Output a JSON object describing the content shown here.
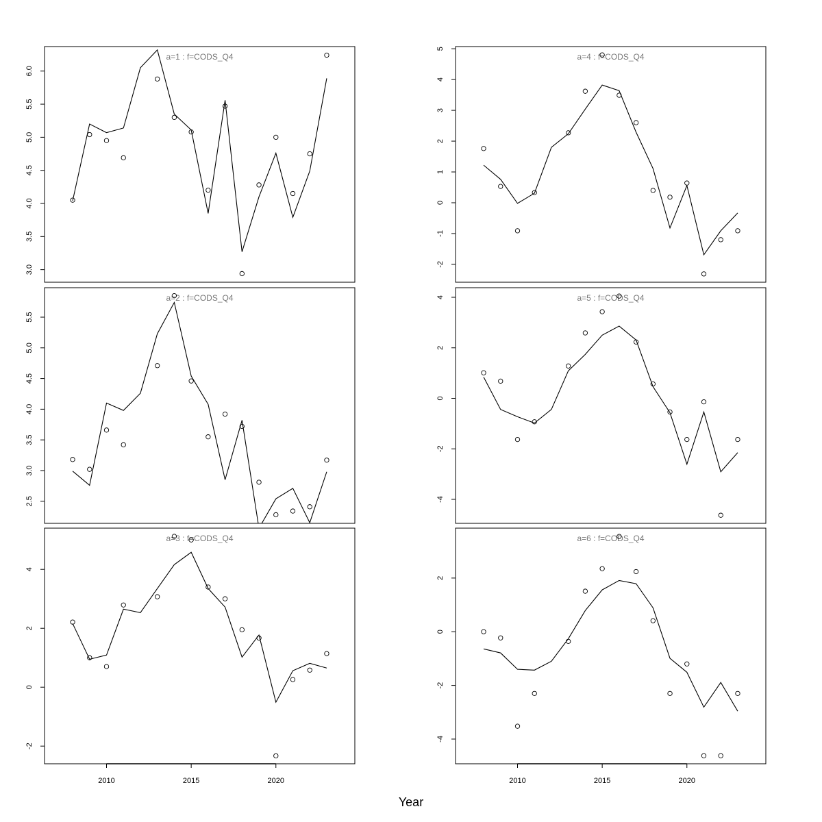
{
  "xlabel": "Year",
  "chart_data": [
    {
      "type": "line",
      "title": "a=1  :  f=CODS_Q4",
      "x": [
        2008,
        2009,
        2010,
        2011,
        2012,
        2013,
        2014,
        2015,
        2016,
        2017,
        2018,
        2019,
        2020,
        2021,
        2022,
        2023
      ],
      "points": [
        4.05,
        5.04,
        4.95,
        4.69,
        null,
        5.88,
        5.3,
        5.08,
        4.2,
        5.47,
        2.94,
        4.28,
        5.0,
        4.15,
        4.75,
        6.24
      ],
      "line": [
        4.04,
        5.2,
        5.07,
        5.14,
        6.05,
        6.32,
        5.35,
        5.11,
        3.85,
        5.56,
        3.27,
        4.1,
        4.76,
        3.79,
        4.49,
        5.89
      ],
      "xlim": [
        2006.34,
        2024.66
      ],
      "ylim": [
        2.81,
        6.37
      ],
      "yticks": [
        {
          "value": 3,
          "label": "3.0"
        },
        3.5,
        {
          "value": 4,
          "label": "4.0"
        },
        4.5,
        {
          "value": 5,
          "label": "5.0"
        },
        5.5,
        {
          "value": 6,
          "label": "6.0"
        }
      ],
      "color": "#000000",
      "title_color": "#777777"
    },
    {
      "type": "line",
      "title": "a=2  :  f=CODS_Q4",
      "x": [
        2008,
        2009,
        2010,
        2011,
        2012,
        2013,
        2014,
        2015,
        2016,
        2017,
        2018,
        2019,
        2020,
        2021,
        2022,
        2023
      ],
      "points": [
        3.18,
        3.02,
        3.66,
        3.42,
        null,
        4.71,
        5.85,
        4.46,
        3.55,
        3.92,
        3.72,
        2.81,
        2.28,
        2.34,
        2.41,
        3.17
      ],
      "line": [
        2.99,
        2.76,
        4.1,
        3.98,
        4.26,
        5.23,
        5.74,
        4.54,
        4.08,
        2.85,
        3.82,
        2.06,
        2.54,
        2.71,
        2.15,
        2.98
      ],
      "xlim": [
        2006.34,
        2024.66
      ],
      "ylim": [
        2.14,
        5.98
      ],
      "yticks": [
        2.5,
        {
          "value": 3,
          "label": "3.0"
        },
        3.5,
        {
          "value": 4,
          "label": "4.0"
        },
        4.5,
        {
          "value": 5,
          "label": "5.0"
        },
        5.5
      ],
      "color": "#000000",
      "title_color": "#777777"
    },
    {
      "type": "line",
      "title": "a=3  :  f=CODS_Q4",
      "x": [
        2008,
        2009,
        2010,
        2011,
        2012,
        2013,
        2014,
        2015,
        2016,
        2017,
        2018,
        2019,
        2020,
        2021,
        2022,
        2023
      ],
      "points": [
        2.21,
        1.0,
        0.7,
        2.79,
        null,
        3.07,
        5.12,
        5.0,
        3.4,
        3.0,
        1.95,
        1.67,
        -2.33,
        0.26,
        0.58,
        1.14
      ],
      "line": [
        2.16,
        0.95,
        1.09,
        2.65,
        2.53,
        3.35,
        4.16,
        4.58,
        3.35,
        2.72,
        1.02,
        1.77,
        -0.51,
        0.56,
        0.81,
        0.65
      ],
      "xlim": [
        2006.34,
        2024.66
      ],
      "ylim": [
        -2.6,
        5.4
      ],
      "xticks": [
        2010,
        2015,
        2020
      ],
      "yticks": [
        -2,
        0,
        2,
        4
      ],
      "color": "#000000",
      "title_color": "#777777"
    },
    {
      "type": "line",
      "title": "a=4  :  f=CODS_Q4",
      "x": [
        2008,
        2009,
        2010,
        2011,
        2012,
        2013,
        2014,
        2015,
        2016,
        2017,
        2018,
        2019,
        2020,
        2021,
        2022,
        2023
      ],
      "points": [
        1.76,
        0.53,
        -0.91,
        0.33,
        null,
        2.27,
        3.62,
        4.8,
        3.49,
        2.6,
        0.4,
        0.18,
        0.64,
        -2.31,
        -1.2,
        -0.91
      ],
      "line": [
        1.22,
        0.76,
        -0.02,
        0.31,
        1.8,
        2.24,
        3.04,
        3.82,
        3.64,
        2.29,
        1.11,
        -0.82,
        0.56,
        -1.69,
        -0.91,
        -0.33
      ],
      "xlim": [
        2006.34,
        2024.66
      ],
      "ylim": [
        -2.58,
        5.07
      ],
      "yticks": [
        -2,
        -1,
        0,
        1,
        2,
        3,
        4,
        5
      ],
      "color": "#000000",
      "title_color": "#777777"
    },
    {
      "type": "line",
      "title": "a=5  :  f=CODS_Q4",
      "x": [
        2008,
        2009,
        2010,
        2011,
        2012,
        2013,
        2014,
        2015,
        2016,
        2017,
        2018,
        2019,
        2020,
        2021,
        2022,
        2023
      ],
      "points": [
        1.01,
        0.68,
        -1.63,
        -0.93,
        null,
        1.28,
        2.59,
        3.43,
        4.05,
        2.23,
        0.57,
        -0.54,
        -1.63,
        -0.14,
        -4.63,
        -1.63
      ],
      "line": [
        0.84,
        -0.44,
        -0.73,
        -0.98,
        -0.44,
        1.09,
        1.74,
        2.5,
        2.86,
        2.31,
        0.46,
        -0.57,
        -2.61,
        -0.54,
        -2.91,
        -2.15
      ],
      "xlim": [
        2006.34,
        2024.66
      ],
      "ylim": [
        -4.95,
        4.38
      ],
      "yticks": [
        -4,
        -2,
        0,
        2,
        4
      ],
      "color": "#000000",
      "title_color": "#777777"
    },
    {
      "type": "line",
      "title": "a=6  :  f=CODS_Q4",
      "x": [
        2008,
        2009,
        2010,
        2011,
        2012,
        2013,
        2014,
        2015,
        2016,
        2017,
        2018,
        2019,
        2020,
        2021,
        2022,
        2023
      ],
      "points": [
        0,
        -0.23,
        -3.52,
        -2.3,
        null,
        -0.36,
        1.51,
        2.35,
        3.55,
        2.24,
        0.41,
        -2.3,
        -1.2,
        -4.62,
        -4.62,
        -2.3
      ],
      "line": [
        -0.64,
        -0.79,
        -1.4,
        -1.43,
        -1.1,
        -0.26,
        0.79,
        1.56,
        1.91,
        1.79,
        0.89,
        -0.99,
        -1.51,
        -2.81,
        -1.89,
        -2.96
      ],
      "xlim": [
        2006.34,
        2024.66
      ],
      "ylim": [
        -4.92,
        3.86
      ],
      "xticks": [
        2010,
        2015,
        2020
      ],
      "yticks": [
        -4,
        -2,
        0,
        2
      ],
      "color": "#000000",
      "title_color": "#777777"
    }
  ]
}
